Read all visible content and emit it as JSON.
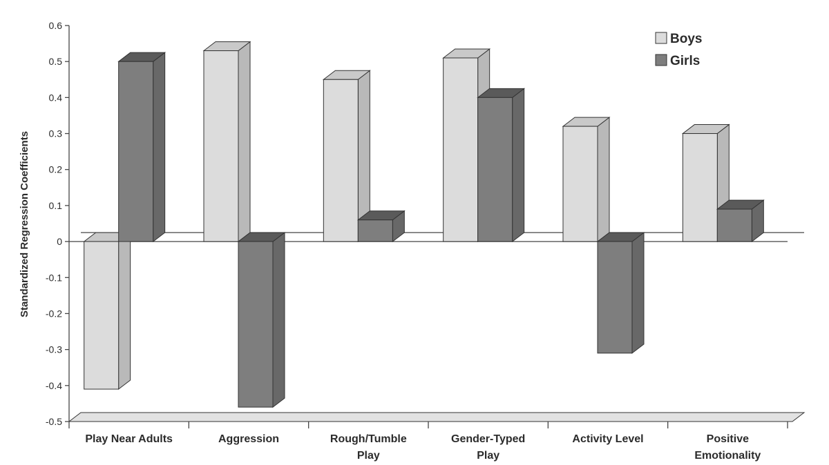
{
  "chart_data": {
    "type": "bar",
    "style": "3d-grouped",
    "title": "",
    "xlabel": "",
    "ylabel": "Standardized Regression Coefficients",
    "ylim": [
      -0.5,
      0.6
    ],
    "yticks": [
      "0.6",
      "0.5",
      "0.4",
      "0.3",
      "0.2",
      "0.1",
      "0",
      "-0.1",
      "-0.2",
      "-0.3",
      "-0.4",
      "-0.5"
    ],
    "ytick_values": [
      0.6,
      0.5,
      0.4,
      0.3,
      0.2,
      0.1,
      0,
      -0.1,
      -0.2,
      -0.3,
      -0.4,
      -0.5
    ],
    "categories": [
      [
        "Play Near Adults"
      ],
      [
        "Aggression"
      ],
      [
        "Rough/Tumble",
        "Play"
      ],
      [
        "Gender-Typed",
        "Play"
      ],
      [
        "Activity Level"
      ],
      [
        "Positive",
        "Emotionality"
      ]
    ],
    "series": [
      {
        "name": "Boys",
        "values": [
          -0.41,
          0.53,
          0.45,
          0.51,
          0.32,
          0.3
        ]
      },
      {
        "name": "Girls",
        "values": [
          0.5,
          -0.46,
          0.06,
          0.4,
          -0.31,
          0.09
        ]
      }
    ],
    "legend_position": "top-right",
    "colors": {
      "Boys": {
        "front": "#dcdcdc",
        "side": "#b9b9b9",
        "top": "#c9c9c9"
      },
      "Girls": {
        "front": "#7e7e7e",
        "side": "#686868",
        "top": "#5a5a5a"
      },
      "floor": "#e2e2e2"
    }
  }
}
